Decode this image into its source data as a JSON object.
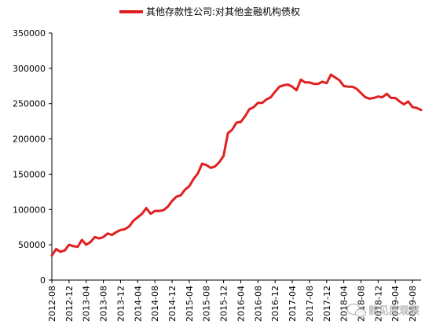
{
  "chart_data": {
    "type": "line",
    "title": "",
    "xlabel": "",
    "ylabel": "",
    "ylim": [
      0,
      350000
    ],
    "yticks": [
      "0",
      "50000",
      "100000",
      "150000",
      "200000",
      "250000",
      "300000",
      "350000"
    ],
    "xticks": [
      "2012-08",
      "2012-12",
      "2013-04",
      "2013-08",
      "2013-12",
      "2014-04",
      "2014-08",
      "2014-12",
      "2015-04",
      "2015-08",
      "2015-12",
      "2016-04",
      "2016-08",
      "2016-12",
      "2017-04",
      "2017-08",
      "2017-12",
      "2018-04",
      "2018-08",
      "2018-12",
      "2019-04",
      "2019-08"
    ],
    "legend_position": "top",
    "grid": false,
    "series": [
      {
        "name": "其他存款性公司:对其他金融机构债权",
        "color": "#e02020",
        "start": "2012-08",
        "values": [
          35000,
          44000,
          40000,
          42000,
          50000,
          48000,
          47000,
          57000,
          50000,
          54000,
          61000,
          59000,
          61000,
          66000,
          64000,
          68000,
          71000,
          72000,
          76000,
          84000,
          89000,
          94000,
          102000,
          94000,
          98000,
          98000,
          99000,
          104000,
          112000,
          118000,
          120000,
          128000,
          133000,
          143000,
          151000,
          165000,
          163000,
          159000,
          161000,
          167000,
          176000,
          208000,
          213000,
          223000,
          224000,
          232000,
          242000,
          245000,
          251000,
          251000,
          256000,
          259000,
          267000,
          274000,
          276000,
          277000,
          274000,
          269000,
          284000,
          280000,
          280000,
          278000,
          278000,
          281000,
          279000,
          291000,
          287000,
          283000,
          275000,
          274000,
          274000,
          271000,
          265000,
          259000,
          257000,
          258000,
          260000,
          259000,
          264000,
          258000,
          258000,
          253000,
          249000,
          253000,
          245000,
          244000,
          241000
        ]
      }
    ]
  },
  "legend": {
    "label": "其他存款性公司:对其他金融机构债权",
    "swatch_color": "#e02020"
  },
  "watermark": {
    "text": "能见度观察",
    "icon": "wechat-icon"
  }
}
